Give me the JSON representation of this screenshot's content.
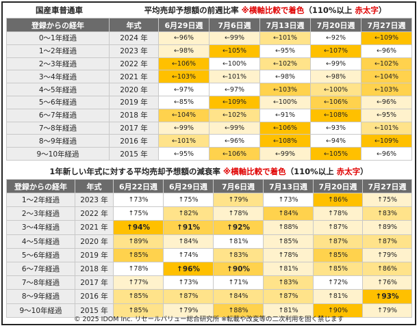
{
  "section1": {
    "title_left": "国産車普通車",
    "title_main": "平均売却予想額の前週比率 ",
    "title_note_red": "※横軸比較で着色",
    "title_paren_start": "（110%以上 ",
    "title_note_red2": "赤太字",
    "title_paren_end": "）",
    "headers": [
      "登録からの経年",
      "年式",
      "6月29日週",
      "7月6日週",
      "7月13日週",
      "7月20日週",
      "7月27日週"
    ],
    "rows": [
      {
        "label": "0～1年経過",
        "year": "2024 年",
        "cells": [
          {
            "t": "←96%",
            "l": 1
          },
          {
            "t": "←99%",
            "l": 1
          },
          {
            "t": "←101%",
            "l": 2
          },
          {
            "t": "←92%",
            "l": 0
          },
          {
            "t": "←109%",
            "l": 4
          }
        ]
      },
      {
        "label": "1～2年経過",
        "year": "2023 年",
        "cells": [
          {
            "t": "←98%",
            "l": 1
          },
          {
            "t": "←105%",
            "l": 4
          },
          {
            "t": "←95%",
            "l": 0
          },
          {
            "t": "←107%",
            "l": 4
          },
          {
            "t": "←96%",
            "l": 0
          }
        ]
      },
      {
        "label": "2～3年経過",
        "year": "2022 年",
        "cells": [
          {
            "t": "←106%",
            "l": 4
          },
          {
            "t": "←100%",
            "l": 0
          },
          {
            "t": "←102%",
            "l": 2
          },
          {
            "t": "←99%",
            "l": 0
          },
          {
            "t": "←102%",
            "l": 3
          }
        ]
      },
      {
        "label": "3～4年経過",
        "year": "2021 年",
        "cells": [
          {
            "t": "←103%",
            "l": 4
          },
          {
            "t": "←101%",
            "l": 1
          },
          {
            "t": "←98%",
            "l": 0
          },
          {
            "t": "←98%",
            "l": 1
          },
          {
            "t": "←104%",
            "l": 3
          }
        ]
      },
      {
        "label": "4～5年経過",
        "year": "2020 年",
        "cells": [
          {
            "t": "←97%",
            "l": 0
          },
          {
            "t": "←97%",
            "l": 0
          },
          {
            "t": "←103%",
            "l": 3
          },
          {
            "t": "←100%",
            "l": 2
          },
          {
            "t": "←103%",
            "l": 3
          }
        ]
      },
      {
        "label": "5～6年経過",
        "year": "2019 年",
        "cells": [
          {
            "t": "←85%",
            "l": 0
          },
          {
            "t": "←109%",
            "l": 4
          },
          {
            "t": "←100%",
            "l": 1
          },
          {
            "t": "←106%",
            "l": 3
          },
          {
            "t": "←96%",
            "l": 1
          }
        ]
      },
      {
        "label": "6～7年経過",
        "year": "2018 年",
        "cells": [
          {
            "t": "←104%",
            "l": 3
          },
          {
            "t": "←102%",
            "l": 2
          },
          {
            "t": "←91%",
            "l": 0
          },
          {
            "t": "←108%",
            "l": 4
          },
          {
            "t": "←95%",
            "l": 1
          }
        ]
      },
      {
        "label": "7～8年経過",
        "year": "2017 年",
        "cells": [
          {
            "t": "←99%",
            "l": 1
          },
          {
            "t": "←99%",
            "l": 1
          },
          {
            "t": "←106%",
            "l": 4
          },
          {
            "t": "←93%",
            "l": 0
          },
          {
            "t": "←101%",
            "l": 2
          }
        ]
      },
      {
        "label": "8～9年経過",
        "year": "2016 年",
        "cells": [
          {
            "t": "←101%",
            "l": 2
          },
          {
            "t": "←96%",
            "l": 0
          },
          {
            "t": "←108%",
            "l": 4
          },
          {
            "t": "←94%",
            "l": 0
          },
          {
            "t": "←109%",
            "l": 4
          }
        ]
      },
      {
        "label": "9～10年経過",
        "year": "2015 年",
        "cells": [
          {
            "t": "←95%",
            "l": 0
          },
          {
            "t": "←106%",
            "l": 3
          },
          {
            "t": "←99%",
            "l": 1
          },
          {
            "t": "←105%",
            "l": 4
          },
          {
            "t": "←96%",
            "l": 0
          }
        ]
      }
    ]
  },
  "section2": {
    "title_main": "1年新しい年式に対する平均売却予想額の減衰率 ",
    "title_note_red": "※横軸比較で着色",
    "title_paren_start": "（110%以上 ",
    "title_note_red2": "赤太字",
    "title_paren_end": "）",
    "headers": [
      "登録からの経年",
      "年式",
      "6月22日週",
      "6月29日週",
      "7月6日週",
      "7月13日週",
      "7月20日週",
      "7月27日週"
    ],
    "rows": [
      {
        "label": "1～2年経過",
        "year": "2023 年",
        "cells": [
          {
            "t": "↑73%",
            "l": 0
          },
          {
            "t": "↑75%",
            "l": 0
          },
          {
            "t": "↑79%",
            "l": 2
          },
          {
            "t": "↑73%",
            "l": 0
          },
          {
            "t": "↑86%",
            "l": 4
          },
          {
            "t": "↑75%",
            "l": 1
          }
        ]
      },
      {
        "label": "2～3年経過",
        "year": "2022 年",
        "cells": [
          {
            "t": "↑75%",
            "l": 0
          },
          {
            "t": "↑82%",
            "l": 2
          },
          {
            "t": "↑78%",
            "l": 1
          },
          {
            "t": "↑84%",
            "l": 3
          },
          {
            "t": "↑78%",
            "l": 1
          },
          {
            "t": "↑83%",
            "l": 2
          }
        ]
      },
      {
        "label": "3～4年経過",
        "year": "2021 年",
        "cells": [
          {
            "t": "↑94%",
            "l": 4,
            "h": true
          },
          {
            "t": "↑91%",
            "l": 3,
            "h": true
          },
          {
            "t": "↑92%",
            "l": 3,
            "h": true
          },
          {
            "t": "↑88%",
            "l": 1
          },
          {
            "t": "↑87%",
            "l": 1
          },
          {
            "t": "↑89%",
            "l": 1
          }
        ]
      },
      {
        "label": "4～5年経過",
        "year": "2020 年",
        "cells": [
          {
            "t": "↑89%",
            "l": 2
          },
          {
            "t": "↑84%",
            "l": 1
          },
          {
            "t": "↑81%",
            "l": 0
          },
          {
            "t": "↑85%",
            "l": 1
          },
          {
            "t": "↑87%",
            "l": 2
          },
          {
            "t": "↑87%",
            "l": 2
          }
        ]
      },
      {
        "label": "5～6年経過",
        "year": "2019 年",
        "cells": [
          {
            "t": "↑85%",
            "l": 3
          },
          {
            "t": "↑74%",
            "l": 0
          },
          {
            "t": "↑83%",
            "l": 2
          },
          {
            "t": "↑78%",
            "l": 1
          },
          {
            "t": "↑85%",
            "l": 3
          },
          {
            "t": "↑79%",
            "l": 1
          }
        ]
      },
      {
        "label": "6～7年経過",
        "year": "2018 年",
        "cells": [
          {
            "t": "↑78%",
            "l": 0
          },
          {
            "t": "↑96%",
            "l": 4,
            "h": true
          },
          {
            "t": "↑90%",
            "l": 3,
            "h": true
          },
          {
            "t": "↑81%",
            "l": 1
          },
          {
            "t": "↑85%",
            "l": 2
          },
          {
            "t": "↑86%",
            "l": 2
          }
        ]
      },
      {
        "label": "7～8年経過",
        "year": "2017 年",
        "cells": [
          {
            "t": "↑77%",
            "l": 1
          },
          {
            "t": "↑73%",
            "l": 0
          },
          {
            "t": "↑71%",
            "l": 0
          },
          {
            "t": "↑83%",
            "l": 2
          },
          {
            "t": "↑72%",
            "l": 0
          },
          {
            "t": "↑76%",
            "l": 1
          }
        ]
      },
      {
        "label": "8～9年経過",
        "year": "2016 年",
        "cells": [
          {
            "t": "↑85%",
            "l": 2
          },
          {
            "t": "↑87%",
            "l": 2
          },
          {
            "t": "↑84%",
            "l": 2
          },
          {
            "t": "↑87%",
            "l": 2
          },
          {
            "t": "↑81%",
            "l": 1
          },
          {
            "t": "↑93%",
            "l": 4,
            "h": true
          }
        ]
      },
      {
        "label": "9～10年経過",
        "year": "2015 年",
        "cells": [
          {
            "t": "↑85%",
            "l": 2
          },
          {
            "t": "↑79%",
            "l": 1
          },
          {
            "t": "↑88%",
            "l": 3
          },
          {
            "t": "↑81%",
            "l": 1
          },
          {
            "t": "↑90%",
            "l": 4
          },
          {
            "t": "↑79%",
            "l": 1
          }
        ]
      }
    ]
  },
  "footer": "© 2025 IDOM Inc. リセールバリュー総合研究所 ※転載や改変等の二次利用を固く禁じます",
  "heat_colors": [
    "#ffffff",
    "#fff2cc",
    "#ffe38a",
    "#ffd24d",
    "#ffc000"
  ]
}
